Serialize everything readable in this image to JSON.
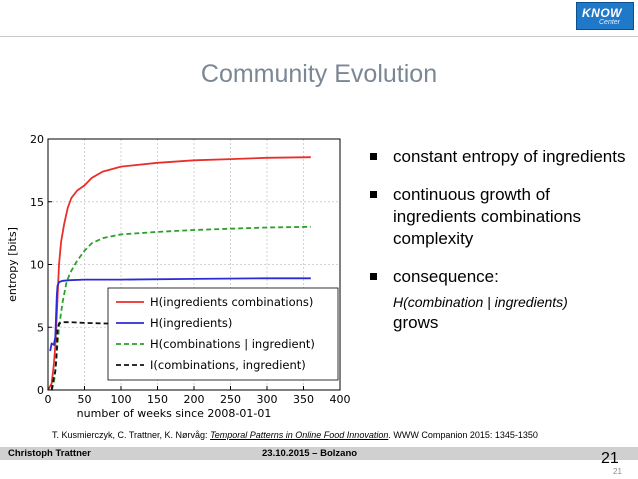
{
  "slide": {
    "title": "Community Evolution",
    "bullets": [
      {
        "text": "constant entropy of ingredients"
      },
      {
        "text": "continuous growth of ingredients combinations complexity"
      },
      {
        "text": "consequence:",
        "italic": "H(combination | ingredients)",
        "after": "grows"
      }
    ],
    "citation": {
      "authors": "T. Kusmierczyk, C. Trattner, K. Nørvåg:",
      "title": "Temporal Patterns in Online Food Innovation",
      "venue": ". WWW Companion 2015: 1345-1350"
    },
    "footer": {
      "author": "Christoph Trattner",
      "date": "23.10.2015 – Bolzano"
    },
    "page_number": "21",
    "page_number_small": "21",
    "logo": {
      "text": "KNOW",
      "sub": "Center",
      "color": "#1f78c8"
    }
  },
  "chart_data": {
    "type": "line",
    "xlabel": "number of weeks since 2008-01-01",
    "ylabel": "entropy [bits]",
    "xlim": [
      0,
      400
    ],
    "ylim": [
      0,
      20
    ],
    "xticks": [
      0,
      50,
      100,
      150,
      200,
      250,
      300,
      350,
      400
    ],
    "yticks": [
      0,
      5,
      10,
      15,
      20
    ],
    "grid": true,
    "legend": "center-right",
    "series": [
      {
        "name": "H(ingredients combinations)",
        "color": "#e8302a",
        "dash": "solid",
        "x": [
          0,
          5,
          8,
          10,
          12,
          15,
          18,
          22,
          27,
          32,
          40,
          50,
          60,
          75,
          100,
          150,
          200,
          250,
          300,
          360
        ],
        "y": [
          0,
          0.5,
          2.0,
          3.5,
          6.0,
          10.0,
          11.8,
          13.2,
          14.5,
          15.3,
          15.9,
          16.3,
          16.9,
          17.4,
          17.8,
          18.1,
          18.3,
          18.4,
          18.5,
          18.55
        ]
      },
      {
        "name": "H(ingredients)",
        "color": "#2b2bd6",
        "dash": "solid",
        "x": [
          3,
          5,
          8,
          10,
          12,
          13,
          15,
          20,
          30,
          50,
          100,
          200,
          300,
          360
        ],
        "y": [
          3.1,
          3.7,
          3.6,
          4.2,
          7.5,
          8.3,
          8.6,
          8.7,
          8.75,
          8.8,
          8.8,
          8.85,
          8.9,
          8.9
        ]
      },
      {
        "name": "H(combinations | ingredient)",
        "color": "#2ca02c",
        "dash": "dashed",
        "x": [
          5,
          8,
          10,
          12,
          15,
          20,
          25,
          30,
          40,
          50,
          60,
          75,
          100,
          150,
          200,
          250,
          300,
          360
        ],
        "y": [
          0,
          0.5,
          1.5,
          3.0,
          5.0,
          7.0,
          8.5,
          9.3,
          10.3,
          11.1,
          11.7,
          12.1,
          12.4,
          12.6,
          12.75,
          12.85,
          12.95,
          13.0
        ]
      },
      {
        "name": "I(combinations, ingredient)",
        "color": "#111111",
        "dash": "dashed",
        "x": [
          5,
          8,
          10,
          12,
          13,
          15,
          20,
          30,
          50,
          80,
          100
        ],
        "y": [
          0,
          1.0,
          1.5,
          3.0,
          4.8,
          5.3,
          5.4,
          5.4,
          5.35,
          5.3,
          5.3
        ]
      }
    ]
  }
}
